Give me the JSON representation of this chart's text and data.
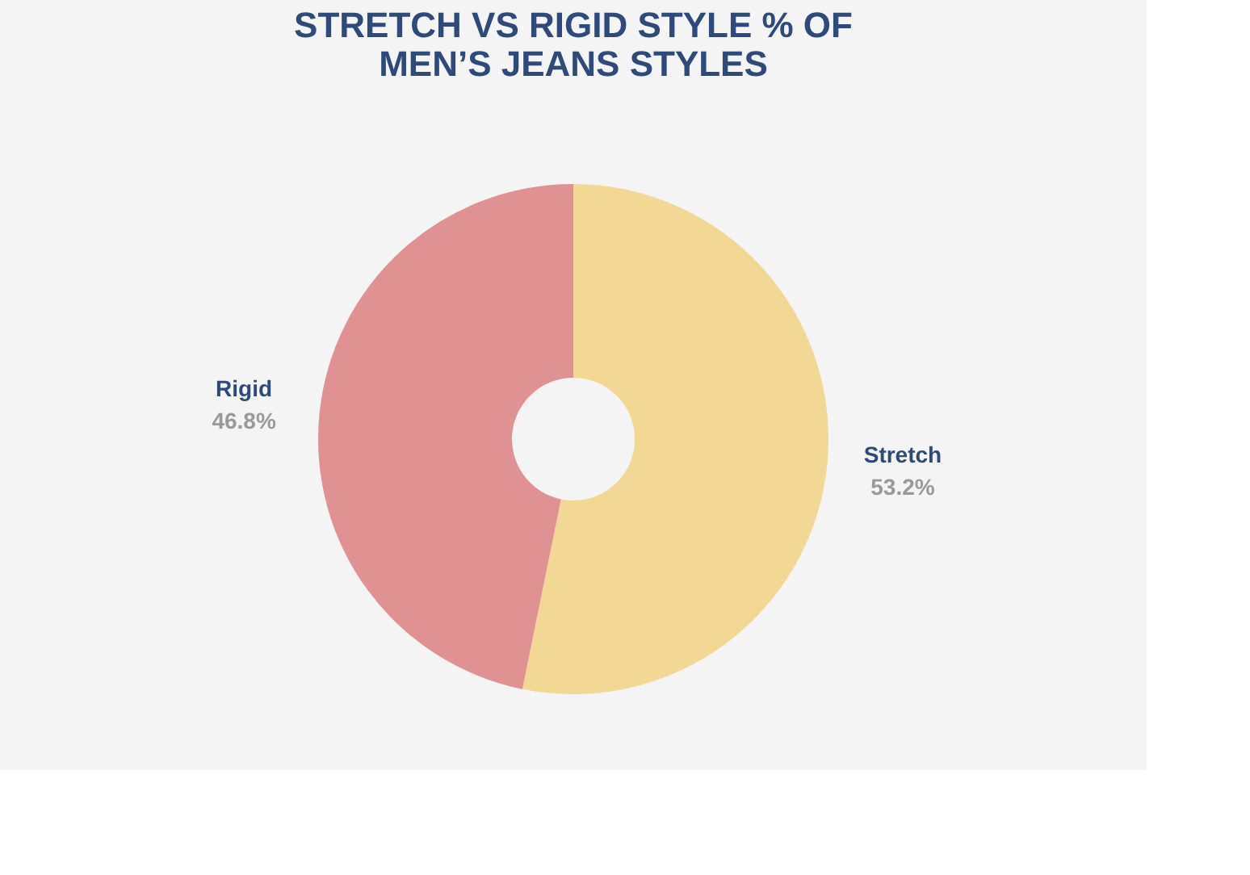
{
  "chart_data": {
    "type": "donut",
    "title": [
      "STRETCH VS RIGID STYLE % OF",
      "MEN’S JEANS STYLES"
    ],
    "categories": [
      "Stretch",
      "Rigid"
    ],
    "values": [
      53.2,
      46.8
    ],
    "colors": [
      "#f3d794",
      "#e09192"
    ],
    "value_labels": [
      "53.2%",
      "46.8%"
    ],
    "legend": false
  }
}
